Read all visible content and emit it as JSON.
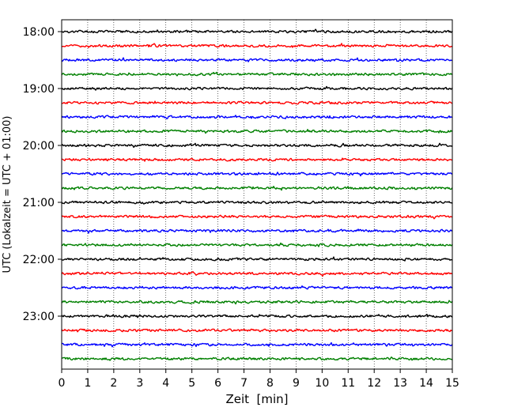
{
  "chart_data": {
    "type": "line",
    "title": "",
    "xlabel": "Zeit  [min]",
    "ylabel": "UTC (Lokalzeit = UTC + 01:00)",
    "xlim": [
      0,
      15
    ],
    "x_ticks": [
      "0",
      "1",
      "2",
      "3",
      "4",
      "5",
      "6",
      "7",
      "8",
      "9",
      "10",
      "11",
      "12",
      "13",
      "14",
      "15"
    ],
    "y_ticks": [
      "18:00",
      "19:00",
      "20:00",
      "21:00",
      "22:00",
      "23:00"
    ],
    "grid": "vertical dotted",
    "trace_interval_min": 15,
    "trace_colors": [
      "#000000",
      "#ff0000",
      "#0000ff",
      "#008000"
    ],
    "series": [
      {
        "start": "18:00",
        "color": "#000000"
      },
      {
        "start": "18:15",
        "color": "#ff0000"
      },
      {
        "start": "18:30",
        "color": "#0000ff"
      },
      {
        "start": "18:45",
        "color": "#008000"
      },
      {
        "start": "19:00",
        "color": "#000000"
      },
      {
        "start": "19:15",
        "color": "#ff0000"
      },
      {
        "start": "19:30",
        "color": "#0000ff"
      },
      {
        "start": "19:45",
        "color": "#008000"
      },
      {
        "start": "20:00",
        "color": "#000000"
      },
      {
        "start": "20:15",
        "color": "#ff0000"
      },
      {
        "start": "20:30",
        "color": "#0000ff"
      },
      {
        "start": "20:45",
        "color": "#008000"
      },
      {
        "start": "21:00",
        "color": "#000000"
      },
      {
        "start": "21:15",
        "color": "#ff0000"
      },
      {
        "start": "21:30",
        "color": "#0000ff"
      },
      {
        "start": "21:45",
        "color": "#008000"
      },
      {
        "start": "22:00",
        "color": "#000000"
      },
      {
        "start": "22:15",
        "color": "#ff0000"
      },
      {
        "start": "22:30",
        "color": "#0000ff"
      },
      {
        "start": "22:45",
        "color": "#008000"
      },
      {
        "start": "23:00",
        "color": "#000000"
      },
      {
        "start": "23:15",
        "color": "#ff0000"
      },
      {
        "start": "23:30",
        "color": "#0000ff"
      },
      {
        "start": "23:45",
        "color": "#008000"
      }
    ]
  }
}
